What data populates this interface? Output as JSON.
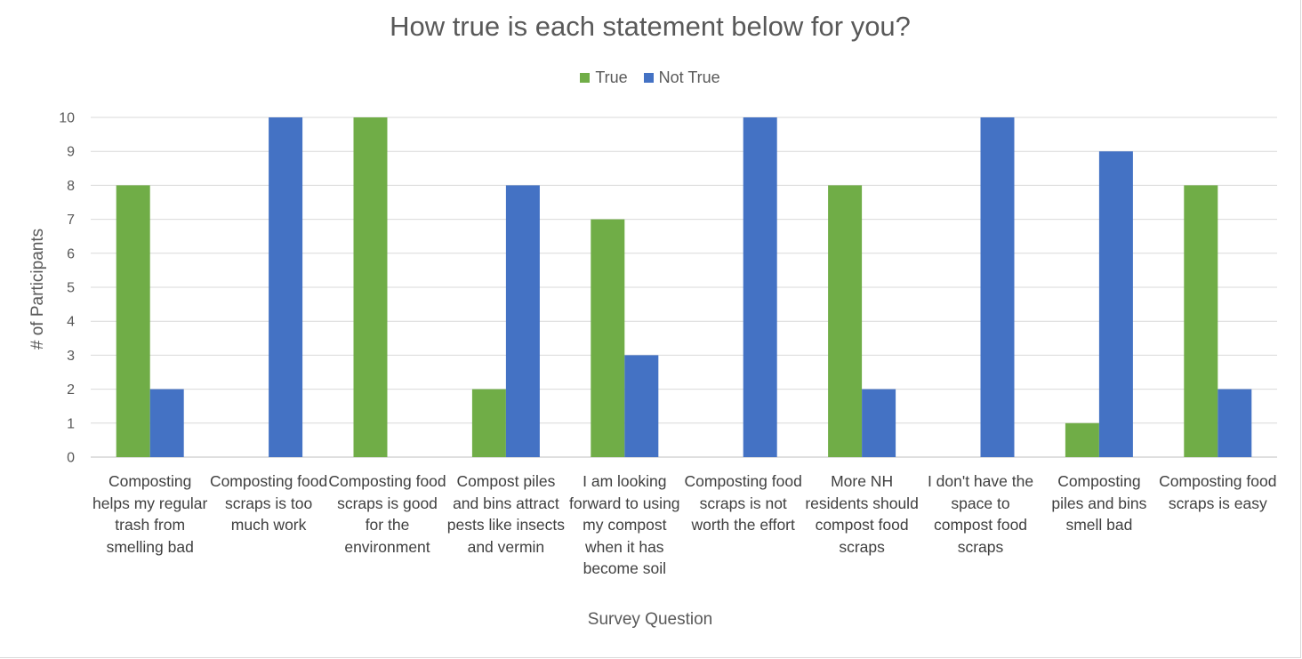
{
  "chart_data": {
    "type": "bar",
    "title": "How true is each statement below for you?",
    "xlabel": "Survey Question",
    "ylabel": "# of Participants",
    "ylim": [
      0,
      10
    ],
    "yticks": [
      0,
      1,
      2,
      3,
      4,
      5,
      6,
      7,
      8,
      9,
      10
    ],
    "grid": true,
    "legend_position": "top",
    "categories": [
      "Composting helps my regular trash from smelling bad",
      "Composting food scraps is too much work",
      "Composting food scraps is good for the environment",
      "Compost piles and bins attract pests like insects and vermin",
      "I am looking forward to using my compost when it has become soil",
      "Composting food scraps is not worth the effort",
      "More NH residents should compost food scraps",
      "I don't have the space to compost food scraps",
      "Composting piles and bins smell bad",
      "Composting food scraps is easy"
    ],
    "series": [
      {
        "name": "True",
        "color": "#70ad47",
        "values": [
          8,
          0,
          10,
          2,
          7,
          0,
          8,
          0,
          1,
          8
        ]
      },
      {
        "name": "Not True",
        "color": "#4472c4",
        "values": [
          2,
          10,
          0,
          8,
          3,
          10,
          2,
          10,
          9,
          2
        ]
      }
    ]
  }
}
